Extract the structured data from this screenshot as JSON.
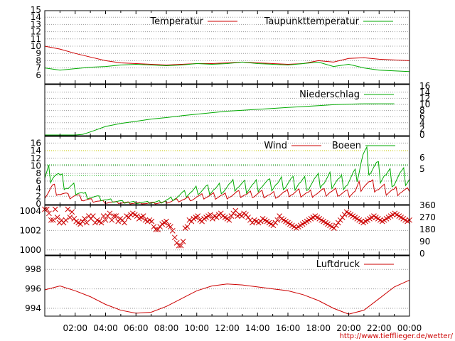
{
  "credit": "http://www.tiefflieger.de/wetter/",
  "colors": {
    "red": "#cc0000",
    "green": "#00aa00",
    "grid": "#9a9a9a"
  },
  "chart_data": [
    {
      "type": "line",
      "name": "temperature",
      "ylim": [
        5,
        15
      ],
      "yticks": [
        "15",
        "14",
        "13",
        "12",
        "11",
        "10",
        "9",
        "8",
        "7",
        "6"
      ],
      "x_hours": [
        0,
        1,
        2,
        3,
        4,
        5,
        6,
        7,
        8,
        9,
        10,
        11,
        12,
        13,
        14,
        15,
        16,
        17,
        18,
        19,
        20,
        21,
        22,
        23,
        24
      ],
      "series": [
        {
          "name": "Temperatur",
          "color": "#cc0000",
          "values": [
            10.0,
            9.6,
            9.0,
            8.5,
            8.0,
            7.7,
            7.6,
            7.5,
            7.4,
            7.5,
            7.6,
            7.6,
            7.7,
            7.8,
            7.7,
            7.6,
            7.5,
            7.6,
            8.0,
            7.8,
            8.3,
            8.4,
            8.2,
            8.1,
            8.0
          ]
        },
        {
          "name": "Taupunkttemperatur",
          "color": "#00aa00",
          "values": [
            7.0,
            6.7,
            6.9,
            7.1,
            7.2,
            7.4,
            7.5,
            7.4,
            7.3,
            7.4,
            7.6,
            7.5,
            7.6,
            7.8,
            7.6,
            7.5,
            7.4,
            7.6,
            7.8,
            7.2,
            7.5,
            7.0,
            6.7,
            6.6,
            6.5
          ]
        }
      ]
    },
    {
      "type": "line",
      "name": "precipitation",
      "ylim": [
        0,
        16
      ],
      "yticks": [
        "16",
        "14",
        "12",
        "10",
        "8",
        "6",
        "4",
        "2",
        "0"
      ],
      "x_hours": [
        0,
        1,
        2,
        2.5,
        3,
        4,
        5,
        6,
        7,
        8,
        9,
        10,
        11,
        12,
        13,
        14,
        15,
        16,
        17,
        18,
        19,
        20,
        21,
        22,
        23,
        24
      ],
      "series": [
        {
          "name": "Niederschlag",
          "color": "#00aa00",
          "values": [
            0,
            0,
            0,
            0.2,
            1.0,
            2.8,
            3.8,
            4.5,
            5.2,
            5.7,
            6.3,
            6.8,
            7.3,
            7.8,
            8.1,
            8.4,
            8.7,
            9.0,
            9.3,
            9.6,
            9.9,
            10.1,
            10.2,
            10.2,
            10.2
          ]
        }
      ]
    },
    {
      "type": "line",
      "name": "wind",
      "ylim": [
        0,
        17
      ],
      "yticks": [
        "16",
        "14",
        "12",
        "10",
        "8",
        "6",
        "4",
        "2",
        "0"
      ],
      "yticks_right": [
        "6",
        "5"
      ],
      "series": [
        {
          "name": "Wind",
          "color": "#cc0000",
          "values": [
            2.5,
            4.5,
            3.0,
            2.0,
            2.2,
            1.2,
            1.0,
            0.8,
            0.5,
            0.4,
            0.3,
            0.3,
            0.2,
            0.2,
            0.2,
            0.3,
            0.6,
            1.0,
            1.3,
            1.6,
            1.9,
            2.1,
            2.2,
            2.2,
            2.4,
            2.6,
            2.4,
            2.6,
            2.8,
            2.5,
            2.6,
            2.8,
            2.9,
            3.0,
            2.8,
            3.1,
            3.0,
            3.2,
            3.0,
            2.9,
            3.5,
            6.0,
            5.0,
            4.2,
            3.8,
            3.5,
            3.8,
            3.2
          ]
        },
        {
          "name": "Boeen",
          "color": "#00aa00",
          "values": [
            7.0,
            9.5,
            6.5,
            4.5,
            4.0,
            2.5,
            2.0,
            1.5,
            1.0,
            0.8,
            0.6,
            0.5,
            0.4,
            0.4,
            0.4,
            0.6,
            1.2,
            2.0,
            2.6,
            3.2,
            3.8,
            4.0,
            4.2,
            4.5,
            4.8,
            5.0,
            4.6,
            5.0,
            5.4,
            5.0,
            5.2,
            5.6,
            5.8,
            6.0,
            5.6,
            6.2,
            6.0,
            6.5,
            6.2,
            6.0,
            7.0,
            12.5,
            10.5,
            9.0,
            8.0,
            7.0,
            7.5,
            6.5
          ]
        }
      ]
    },
    {
      "type": "scatter",
      "name": "wind-direction",
      "ylim": [
        0,
        360
      ],
      "yticks_right": [
        "360",
        "270",
        "180",
        "90",
        "0"
      ],
      "marker": "x",
      "color": "#cc0000",
      "values": [
        330,
        330,
        300,
        250,
        250,
        330,
        270,
        230,
        250,
        230,
        250,
        330,
        270,
        310,
        260,
        240,
        230,
        220,
        240,
        260,
        230,
        280,
        260,
        280,
        230,
        250,
        240,
        230,
        280,
        250,
        280,
        300,
        250,
        280,
        280,
        240,
        260,
        250,
        230,
        280,
        270,
        290,
        300,
        290,
        280,
        260,
        270,
        280,
        250,
        240,
        250,
        240,
        200,
        180,
        180,
        200,
        220,
        230,
        240,
        210,
        200,
        170,
        120,
        80,
        60,
        60,
        90,
        190,
        200,
        250,
        240,
        260,
        270,
        280,
        250,
        240,
        260,
        270,
        280,
        290,
        260,
        280,
        270,
        290,
        300,
        280,
        270,
        260,
        250,
        280,
        300,
        320,
        280,
        290,
        280,
        300,
        290,
        270,
        250,
        230,
        250,
        240,
        230,
        240,
        260,
        250,
        240,
        230,
        220,
        210,
        230,
        250,
        280,
        260,
        250,
        240,
        230,
        220,
        210,
        200,
        190,
        200,
        210,
        220,
        230,
        240,
        250,
        260,
        270,
        280,
        270,
        260,
        250,
        240,
        230,
        220,
        210,
        200,
        190,
        210,
        230,
        250,
        270,
        290,
        310,
        300,
        290,
        280,
        270,
        260,
        250,
        240,
        230,
        240,
        250,
        260,
        270,
        280,
        270,
        260,
        250,
        240,
        250,
        260,
        270,
        280,
        290,
        300,
        290,
        280,
        270,
        260,
        250,
        240,
        250
      ]
    },
    {
      "type": "line",
      "name": "pressure",
      "ylim": [
        992.5,
        1004
      ],
      "yticks": [
        "1004",
        "1002",
        "1000",
        "998",
        "996",
        "994"
      ],
      "x_hours": [
        0,
        1,
        2,
        3,
        4,
        5,
        6,
        7,
        8,
        9,
        10,
        11,
        12,
        13,
        14,
        15,
        16,
        17,
        18,
        19,
        20,
        21,
        22,
        23,
        24
      ],
      "series": [
        {
          "name": "Luftdruck",
          "color": "#cc0000",
          "values": [
            995.9,
            996.3,
            995.8,
            995.2,
            994.4,
            993.8,
            993.5,
            993.6,
            994.2,
            995.0,
            995.8,
            996.3,
            996.5,
            996.4,
            996.2,
            996.0,
            995.8,
            995.4,
            994.8,
            994.0,
            993.4,
            993.8,
            995.0,
            996.2,
            996.9
          ]
        }
      ]
    }
  ],
  "xticks": [
    "02:00",
    "04:00",
    "06:00",
    "08:00",
    "10:00",
    "12:00",
    "14:00",
    "16:00",
    "18:00",
    "20:00",
    "22:00",
    "00:00"
  ]
}
